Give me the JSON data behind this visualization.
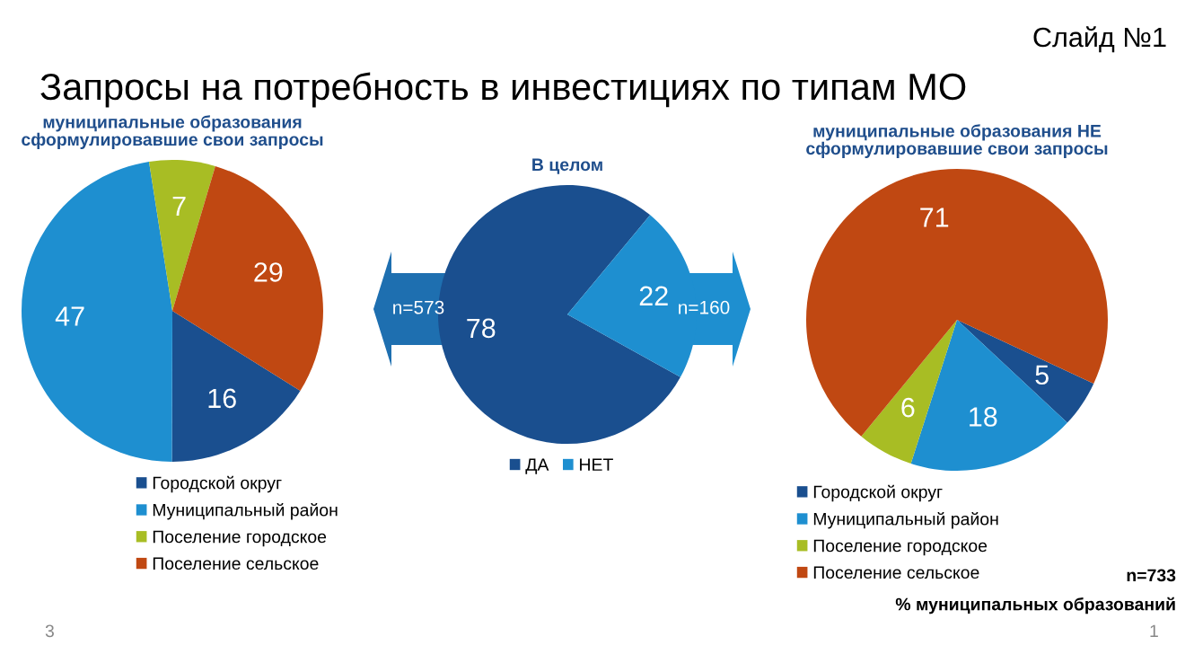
{
  "chart_data": [
    {
      "type": "pie",
      "title": "муниципальные образования\nсформулировавшие свои запросы",
      "categories": [
        "Городской округ",
        "Муниципальный район",
        "Поселение городское",
        "Поселение сельское"
      ],
      "values": [
        16,
        47,
        7,
        29
      ],
      "colors": [
        "#1a4f8f",
        "#1e8fd0",
        "#a8bd24",
        "#c04812"
      ],
      "data_labels": true,
      "legend": "bottom",
      "annotations": [
        "Слайд №1",
        "Запросы на потребность в инвестициях по типам МО",
        "n=573",
        "3"
      ]
    },
    {
      "type": "pie",
      "title": "В целом",
      "categories": [
        "ДА",
        "НЕТ"
      ],
      "values": [
        78,
        22
      ],
      "colors": [
        "#1a4f8f",
        "#1e8fd0"
      ],
      "data_labels": true,
      "legend": "bottom",
      "annotations": [
        "n=733",
        "% муниципальных образований"
      ]
    },
    {
      "type": "pie",
      "title": "муниципальные образования НЕ\nсформулировавшие свои запросы",
      "categories": [
        "Городской округ",
        "Муниципальный район",
        "Поселение городское",
        "Поселение сельское"
      ],
      "values": [
        5,
        18,
        6,
        71
      ],
      "colors": [
        "#1a4f8f",
        "#1e8fd0",
        "#a8bd24",
        "#c04812"
      ],
      "data_labels": true,
      "legend": "bottom",
      "annotations": [
        "n=160",
        "1"
      ]
    }
  ]
}
